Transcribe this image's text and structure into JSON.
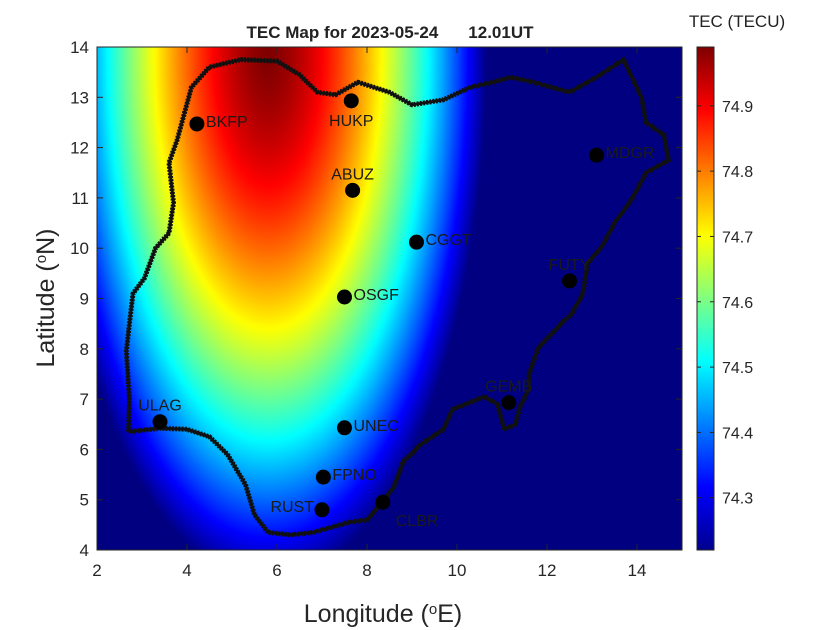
{
  "chart_data": {
    "type": "heatmap",
    "title": "TEC Map for 2023-05-24",
    "time_label": "12.01UT",
    "xlabel": "Longitude",
    "xlabel_unit": "E",
    "ylabel": "Latitude",
    "ylabel_unit": "N",
    "xlim": [
      2,
      15
    ],
    "ylim": [
      4,
      14
    ],
    "xticks": [
      2,
      4,
      6,
      8,
      10,
      12,
      14
    ],
    "yticks": [
      4,
      5,
      6,
      7,
      8,
      9,
      10,
      11,
      12,
      13,
      14
    ],
    "colorbar": {
      "label": "TEC (TECU)",
      "range": [
        74.22,
        74.99
      ],
      "ticks": [
        74.3,
        74.4,
        74.5,
        74.6,
        74.7,
        74.8,
        74.9
      ],
      "colormap": "jet"
    },
    "field": {
      "peak_lon": 5.8,
      "peak_lat": 13.9,
      "peak_value": 74.99
    },
    "stations": [
      {
        "name": "BKFP",
        "lon": 4.22,
        "lat": 12.47,
        "label_pos": "right"
      },
      {
        "name": "HUKP",
        "lon": 7.65,
        "lat": 12.93,
        "label_pos": "below"
      },
      {
        "name": "ABUZ",
        "lon": 7.68,
        "lat": 11.15,
        "label_pos": "above"
      },
      {
        "name": "MDGR",
        "lon": 13.1,
        "lat": 11.85,
        "label_pos": "right"
      },
      {
        "name": "CGGT",
        "lon": 9.1,
        "lat": 10.12,
        "label_pos": "right"
      },
      {
        "name": "FUTY",
        "lon": 12.5,
        "lat": 9.35,
        "label_pos": "above"
      },
      {
        "name": "OSGF",
        "lon": 7.5,
        "lat": 9.03,
        "label_pos": "right"
      },
      {
        "name": "GEMB",
        "lon": 11.15,
        "lat": 6.93,
        "label_pos": "above"
      },
      {
        "name": "ULAG",
        "lon": 3.4,
        "lat": 6.55,
        "label_pos": "above"
      },
      {
        "name": "UNEC",
        "lon": 7.5,
        "lat": 6.43,
        "label_pos": "right"
      },
      {
        "name": "FPNO",
        "lon": 7.03,
        "lat": 5.45,
        "label_pos": "right"
      },
      {
        "name": "CLBR",
        "lon": 8.35,
        "lat": 4.95,
        "label_pos": "below-right"
      },
      {
        "name": "RUST",
        "lon": 7.0,
        "lat": 4.8,
        "label_pos": "left"
      }
    ],
    "boundary": [
      [
        2.7,
        6.35
      ],
      [
        2.72,
        7.0
      ],
      [
        2.65,
        7.95
      ],
      [
        2.72,
        8.5
      ],
      [
        2.8,
        9.1
      ],
      [
        3.05,
        9.4
      ],
      [
        3.3,
        10.0
      ],
      [
        3.6,
        10.3
      ],
      [
        3.7,
        10.9
      ],
      [
        3.6,
        11.7
      ],
      [
        3.78,
        12.15
      ],
      [
        4.1,
        13.2
      ],
      [
        4.5,
        13.6
      ],
      [
        5.2,
        13.75
      ],
      [
        6.0,
        13.72
      ],
      [
        6.5,
        13.45
      ],
      [
        6.9,
        13.1
      ],
      [
        7.3,
        13.05
      ],
      [
        7.8,
        13.3
      ],
      [
        8.5,
        13.1
      ],
      [
        9.0,
        12.85
      ],
      [
        9.7,
        12.95
      ],
      [
        10.3,
        13.2
      ],
      [
        10.8,
        13.3
      ],
      [
        11.2,
        13.4
      ],
      [
        11.7,
        13.3
      ],
      [
        12.5,
        13.1
      ],
      [
        13.1,
        13.4
      ],
      [
        13.7,
        13.75
      ],
      [
        14.1,
        13.0
      ],
      [
        14.2,
        12.5
      ],
      [
        14.6,
        12.25
      ],
      [
        14.7,
        11.75
      ],
      [
        14.2,
        11.5
      ],
      [
        13.9,
        11.0
      ],
      [
        13.5,
        10.5
      ],
      [
        13.2,
        10.0
      ],
      [
        12.9,
        9.7
      ],
      [
        12.8,
        9.1
      ],
      [
        12.55,
        8.7
      ],
      [
        12.2,
        8.4
      ],
      [
        11.8,
        8.0
      ],
      [
        11.6,
        7.5
      ],
      [
        11.6,
        7.2
      ],
      [
        11.4,
        6.85
      ],
      [
        11.3,
        6.5
      ],
      [
        11.05,
        6.4
      ],
      [
        10.9,
        6.9
      ],
      [
        10.6,
        7.05
      ],
      [
        10.2,
        6.9
      ],
      [
        9.9,
        6.8
      ],
      [
        9.7,
        6.4
      ],
      [
        9.2,
        6.1
      ],
      [
        8.8,
        5.75
      ],
      [
        8.6,
        5.25
      ],
      [
        8.35,
        4.95
      ],
      [
        8.0,
        4.6
      ],
      [
        7.6,
        4.55
      ],
      [
        7.2,
        4.45
      ],
      [
        6.8,
        4.35
      ],
      [
        6.3,
        4.3
      ],
      [
        5.8,
        4.35
      ],
      [
        5.5,
        4.7
      ],
      [
        5.3,
        5.3
      ],
      [
        4.9,
        5.9
      ],
      [
        4.5,
        6.25
      ],
      [
        4.0,
        6.4
      ],
      [
        3.4,
        6.42
      ],
      [
        2.7,
        6.35
      ]
    ]
  }
}
